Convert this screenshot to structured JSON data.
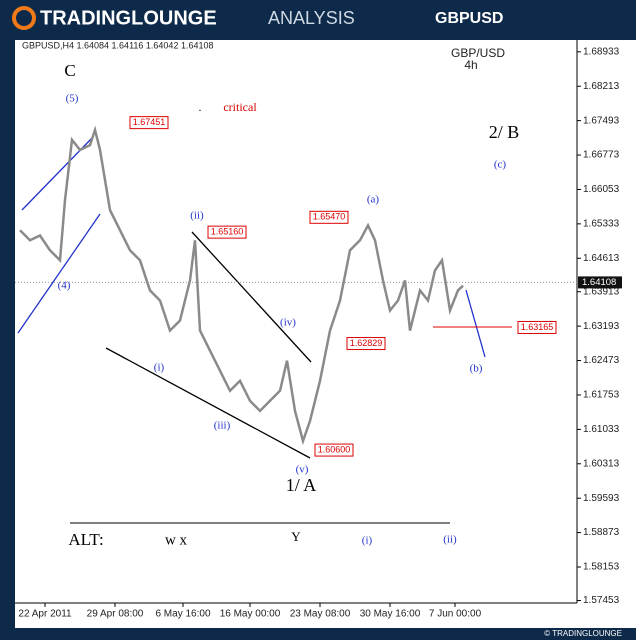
{
  "header": {
    "brand": "TRADINGLOUNGE",
    "suffix": "ANALYSIS",
    "symbol": "GBPUSD"
  },
  "footer": "© TRADINGLOUNGE",
  "chart_data": {
    "type": "line",
    "title": "GBPUSD,H4  1.64084 1.64116 1.64042 1.64108",
    "subtitle": "GBP/USD",
    "timeframe": "4h",
    "color": "#8a8a8a",
    "series": [
      {
        "x": [
          5,
          15,
          25,
          35,
          45,
          50,
          57,
          65,
          75,
          80,
          85,
          95,
          105,
          115,
          125,
          135,
          145,
          155,
          165,
          175,
          180,
          185,
          195,
          205,
          215,
          225,
          235,
          245,
          255,
          265,
          272,
          280,
          288,
          295,
          305,
          315,
          325,
          335,
          345,
          353,
          360,
          368,
          375,
          383,
          390,
          395,
          405,
          413,
          420,
          427,
          435,
          443,
          448
        ],
        "values": [
          1.652,
          1.6499,
          1.6509,
          1.6478,
          1.6457,
          1.6583,
          1.6709,
          1.6688,
          1.6698,
          1.673,
          1.6688,
          1.6562,
          1.652,
          1.6478,
          1.6457,
          1.6394,
          1.6373,
          1.631,
          1.6331,
          1.6415,
          1.6499,
          1.631,
          1.6268,
          1.6226,
          1.6184,
          1.6205,
          1.6163,
          1.6142,
          1.6163,
          1.6184,
          1.6247,
          1.6142,
          1.6079,
          1.6121,
          1.6205,
          1.631,
          1.6373,
          1.6478,
          1.6499,
          1.653,
          1.6499,
          1.6415,
          1.6352,
          1.6373,
          1.6415,
          1.631,
          1.6394,
          1.6373,
          1.6436,
          1.6457,
          1.6352,
          1.6394,
          1.6404
        ]
      }
    ],
    "xlim": [
      0,
      562
    ],
    "xticks": [
      {
        "value": 30,
        "label": "22 Apr 2011"
      },
      {
        "value": 100,
        "label": "29 Apr 08:00"
      },
      {
        "value": 168,
        "label": "6 May 16:00"
      },
      {
        "value": 235,
        "label": "16 May 00:00"
      },
      {
        "value": 305,
        "label": "23 May 08:00"
      },
      {
        "value": 375,
        "label": "30 May 16:00"
      },
      {
        "value": 440,
        "label": "7 Jun 00:00"
      }
    ],
    "ylim": [
      1.574,
      1.6918
    ],
    "yticks": [
      1.68933,
      1.68213,
      1.67493,
      1.66773,
      1.66053,
      1.65333,
      1.64613,
      1.63913,
      1.63193,
      1.62473,
      1.61753,
      1.61033,
      1.60313,
      1.59593,
      1.58873,
      1.58153,
      1.57453
    ],
    "current_price": 1.64108,
    "price_labels": [
      {
        "value": 1.67451,
        "label": "1.67451"
      },
      {
        "value": 1.6516,
        "label": "1.65160"
      },
      {
        "value": 1.6547,
        "label": "1.65470"
      },
      {
        "value": 1.62829,
        "label": "1.62829"
      },
      {
        "value": 1.606,
        "label": "1.60600"
      },
      {
        "value": 1.63165,
        "label": "1.63165"
      }
    ],
    "annotations": [
      "C",
      "(5)",
      "critical",
      ".",
      "(4)",
      "(ii)",
      "(iv)",
      "(i)",
      "(iii)",
      "(v)",
      "1/ A",
      "(a)",
      "2/ B",
      "(c)",
      "(b)",
      "ALT:",
      "w x",
      "Y",
      "(i)",
      "(ii)"
    ]
  }
}
